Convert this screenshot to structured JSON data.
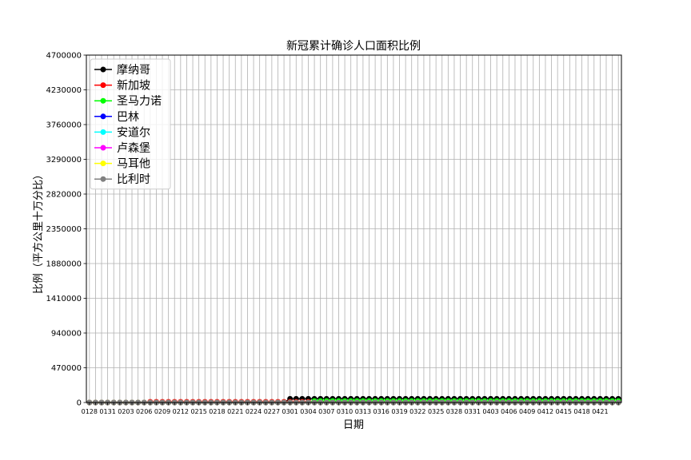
{
  "chart_data": {
    "type": "line",
    "title": "新冠累计确诊人口面积比例",
    "xlabel": "日期",
    "ylabel": "比例（平方公里十万分比）",
    "ylim": [
      0,
      4700000
    ],
    "yticks": [
      0,
      470000,
      940000,
      1410000,
      1880000,
      2350000,
      2820000,
      3290000,
      3760000,
      4230000,
      4700000
    ],
    "ytick_labels": [
      "0",
      "470000",
      "940000",
      "1410000",
      "1880000",
      "2350000",
      "2820000",
      "3290000",
      "3760000",
      "4230000",
      "4700000"
    ],
    "xtick_labels": [
      "0128",
      "0131",
      "0203",
      "0206",
      "0209",
      "0212",
      "0215",
      "0218",
      "0221",
      "0224",
      "0227",
      "0301",
      "0304",
      "0307",
      "0310",
      "0313",
      "0316",
      "0319",
      "0322",
      "0325",
      "0328",
      "0331",
      "0403",
      "0406",
      "0409",
      "0412",
      "0415",
      "0418",
      "0421"
    ],
    "grid": true,
    "legend_position": "top-left",
    "x": [
      "0128",
      "0129",
      "0130",
      "0131",
      "0201",
      "0202",
      "0203",
      "0204",
      "0205",
      "0206",
      "0207",
      "0208",
      "0209",
      "0210",
      "0211",
      "0212",
      "0213",
      "0214",
      "0215",
      "0216",
      "0217",
      "0218",
      "0219",
      "0220",
      "0221",
      "0222",
      "0223",
      "0224",
      "0225",
      "0226",
      "0227",
      "0228",
      "0229",
      "0301",
      "0302",
      "0303",
      "0304",
      "0305",
      "0306",
      "0307",
      "0308",
      "0309",
      "0310",
      "0311",
      "0312",
      "0313",
      "0314",
      "0315",
      "0316",
      "0317",
      "0318",
      "0319",
      "0320",
      "0321",
      "0322",
      "0323",
      "0324",
      "0325",
      "0326",
      "0327",
      "0328",
      "0329",
      "0330",
      "0331",
      "0401",
      "0402",
      "0403",
      "0404",
      "0405",
      "0406",
      "0407",
      "0408",
      "0409",
      "0410",
      "0411",
      "0412",
      "0413",
      "0414",
      "0415",
      "0416",
      "0417",
      "0418",
      "0419",
      "0420",
      "0421",
      "0422",
      "0423",
      "0424"
    ],
    "series": [
      {
        "name": "摩纳哥",
        "color": "#000000",
        "values": [
          0,
          0,
          0,
          0,
          0,
          0,
          0,
          0,
          0,
          0,
          0,
          0,
          0,
          0,
          0,
          0,
          0,
          0,
          0,
          0,
          0,
          0,
          0,
          0,
          0,
          0,
          0,
          0,
          0,
          0,
          0,
          0,
          0,
          50000,
          50000,
          50000,
          50000,
          50000,
          50000,
          50000,
          50000,
          50000,
          50000,
          50000,
          50000,
          50000,
          50000,
          50000,
          50000,
          50000,
          50000,
          50000,
          50000,
          50000,
          50000,
          50000,
          50000,
          50000,
          50000,
          50000,
          50000,
          50000,
          50000,
          50000,
          50000,
          50000,
          50000,
          50000,
          50000,
          50000,
          50000,
          50000,
          50000,
          50000,
          50000,
          50000,
          50000,
          50000,
          50000,
          50000,
          50000,
          50000,
          50000,
          50000,
          50000,
          50000,
          50000,
          50000
        ]
      },
      {
        "name": "新加坡",
        "color": "#ff0000",
        "values": [
          0,
          0,
          0,
          0,
          0,
          0,
          0,
          0,
          0,
          0,
          10000,
          10000,
          10000,
          10000,
          10000,
          10000,
          10000,
          10000,
          10000,
          10000,
          10000,
          10000,
          10000,
          10000,
          10000,
          10000,
          10000,
          10000,
          10000,
          10000,
          10000,
          10000,
          10000,
          10000,
          10000,
          10000,
          10000,
          10000,
          10000,
          10000,
          10000,
          10000,
          10000,
          10000,
          10000,
          10000,
          10000,
          10000,
          10000,
          10000,
          10000,
          10000,
          10000,
          10000,
          10000,
          10000,
          10000,
          10000,
          10000,
          10000,
          10000,
          10000,
          10000,
          10000,
          10000,
          10000,
          10000,
          10000,
          10000,
          10000,
          10000,
          10000,
          10000,
          10000,
          10000,
          10000,
          10000,
          10000,
          10000,
          10000,
          10000,
          10000,
          10000,
          10000,
          10000,
          10000,
          10000,
          10000
        ]
      },
      {
        "name": "圣马力诺",
        "color": "#00ff00",
        "values": [
          0,
          0,
          0,
          0,
          0,
          0,
          0,
          0,
          0,
          0,
          0,
          0,
          0,
          0,
          0,
          0,
          0,
          0,
          0,
          0,
          0,
          0,
          0,
          0,
          0,
          0,
          0,
          0,
          0,
          0,
          0,
          0,
          0,
          0,
          0,
          0,
          0,
          20000,
          20000,
          20000,
          20000,
          20000,
          20000,
          20000,
          20000,
          20000,
          20000,
          20000,
          20000,
          20000,
          20000,
          20000,
          20000,
          20000,
          20000,
          20000,
          20000,
          20000,
          20000,
          20000,
          20000,
          20000,
          20000,
          20000,
          20000,
          20000,
          20000,
          20000,
          20000,
          20000,
          20000,
          20000,
          20000,
          20000,
          20000,
          20000,
          20000,
          20000,
          20000,
          20000,
          20000,
          20000,
          20000,
          20000,
          20000,
          20000,
          20000,
          20000
        ]
      },
      {
        "name": "巴林",
        "color": "#0000ff",
        "values": [
          0,
          0,
          0,
          0,
          0,
          0,
          0,
          0,
          0,
          0,
          0,
          0,
          0,
          0,
          0,
          0,
          0,
          0,
          0,
          0,
          0,
          0,
          0,
          0,
          0,
          0,
          0,
          0,
          0,
          0,
          0,
          0,
          0,
          0,
          0,
          0,
          0,
          0,
          0,
          0,
          0,
          0,
          0,
          0,
          0,
          0,
          0,
          0,
          0,
          0,
          0,
          0,
          0,
          0,
          0,
          0,
          0,
          0,
          0,
          0,
          0,
          0,
          0,
          0,
          0,
          0,
          0,
          0,
          0,
          0,
          0,
          0,
          0,
          0,
          0,
          0,
          0,
          0,
          0,
          0,
          0,
          0,
          0,
          0,
          0,
          0,
          0,
          0
        ]
      },
      {
        "name": "安道尔",
        "color": "#00ffff",
        "values": [
          0,
          0,
          0,
          0,
          0,
          0,
          0,
          0,
          0,
          0,
          0,
          0,
          0,
          0,
          0,
          0,
          0,
          0,
          0,
          0,
          0,
          0,
          0,
          0,
          0,
          0,
          0,
          0,
          0,
          0,
          0,
          0,
          0,
          0,
          0,
          0,
          0,
          0,
          0,
          0,
          0,
          0,
          0,
          0,
          0,
          0,
          0,
          0,
          0,
          0,
          0,
          0,
          0,
          0,
          0,
          0,
          0,
          0,
          0,
          0,
          0,
          0,
          0,
          0,
          0,
          0,
          0,
          0,
          0,
          0,
          0,
          0,
          0,
          0,
          0,
          0,
          0,
          0,
          0,
          0,
          0,
          0,
          0,
          0,
          0,
          0,
          0,
          0
        ]
      },
      {
        "name": "卢森堡",
        "color": "#ff00ff",
        "values": [
          0,
          0,
          0,
          0,
          0,
          0,
          0,
          0,
          0,
          0,
          0,
          0,
          0,
          0,
          0,
          0,
          0,
          0,
          0,
          0,
          0,
          0,
          0,
          0,
          0,
          0,
          0,
          0,
          0,
          0,
          0,
          0,
          0,
          0,
          0,
          0,
          0,
          0,
          0,
          0,
          0,
          0,
          0,
          0,
          0,
          0,
          0,
          0,
          0,
          0,
          0,
          0,
          0,
          0,
          0,
          0,
          0,
          0,
          0,
          0,
          0,
          0,
          0,
          0,
          0,
          0,
          0,
          0,
          0,
          0,
          0,
          0,
          0,
          0,
          0,
          0,
          0,
          0,
          0,
          0,
          0,
          0,
          0,
          0,
          0,
          0,
          0,
          0
        ]
      },
      {
        "name": "马耳他",
        "color": "#ffff00",
        "values": [
          0,
          0,
          0,
          0,
          0,
          0,
          0,
          0,
          0,
          0,
          0,
          0,
          0,
          0,
          0,
          0,
          0,
          0,
          0,
          0,
          0,
          0,
          0,
          0,
          0,
          0,
          0,
          0,
          0,
          0,
          0,
          0,
          0,
          0,
          0,
          0,
          0,
          0,
          0,
          0,
          0,
          0,
          0,
          0,
          0,
          0,
          0,
          0,
          0,
          0,
          0,
          0,
          0,
          0,
          0,
          0,
          0,
          0,
          0,
          0,
          0,
          0,
          0,
          0,
          0,
          0,
          0,
          0,
          0,
          0,
          0,
          0,
          0,
          0,
          0,
          0,
          0,
          0,
          0,
          0,
          0,
          0,
          0,
          0,
          0,
          0,
          0,
          0
        ]
      },
      {
        "name": "比利时",
        "color": "#808080",
        "values": [
          0,
          0,
          0,
          0,
          0,
          0,
          0,
          0,
          0,
          0,
          0,
          0,
          0,
          0,
          0,
          0,
          0,
          0,
          0,
          0,
          0,
          0,
          0,
          0,
          0,
          0,
          0,
          0,
          0,
          0,
          0,
          0,
          0,
          0,
          0,
          0,
          0,
          0,
          0,
          0,
          0,
          0,
          0,
          0,
          0,
          0,
          0,
          0,
          0,
          0,
          0,
          0,
          0,
          0,
          0,
          0,
          0,
          0,
          0,
          0,
          0,
          0,
          0,
          0,
          0,
          0,
          0,
          0,
          0,
          0,
          0,
          0,
          0,
          0,
          0,
          0,
          0,
          0,
          0,
          0,
          0,
          0,
          0,
          0,
          0,
          0,
          0,
          0
        ]
      }
    ]
  }
}
